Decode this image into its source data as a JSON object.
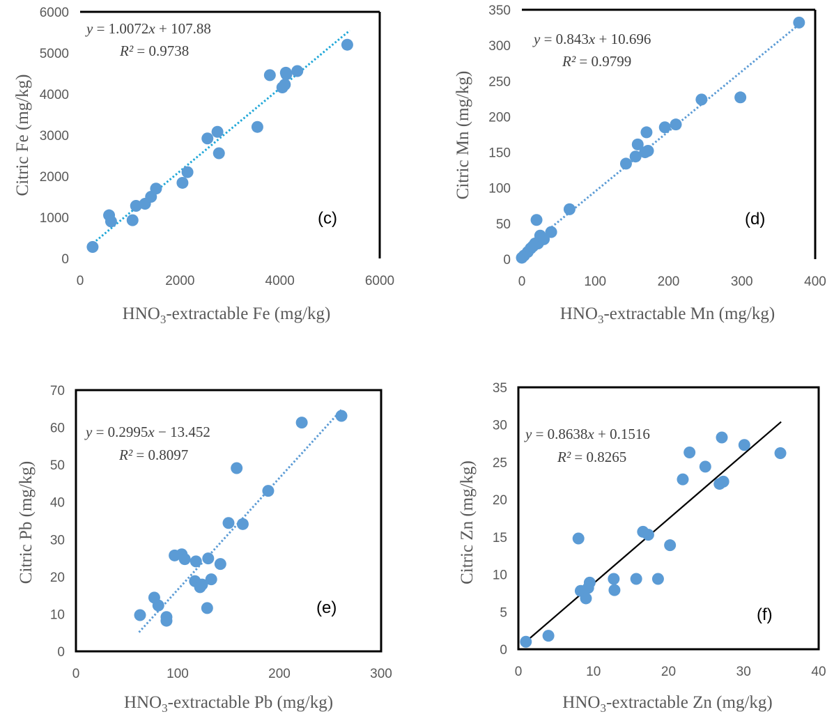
{
  "chart_data": [
    {
      "id": "c",
      "type": "scatter",
      "panel_label": "(c)",
      "xlabel": {
        "pre": "HNO",
        "sub": "3",
        "post": "-extractable Fe (mg/kg)"
      },
      "ylabel": "Citric Fe (mg/kg)",
      "xlim": [
        0,
        6000
      ],
      "ylim": [
        0,
        6000
      ],
      "xticks": [
        0,
        2000,
        4000,
        6000
      ],
      "yticks": [
        0,
        1000,
        2000,
        3000,
        4000,
        5000,
        6000
      ],
      "equation": {
        "y": "y",
        "eq": " = 1.0072",
        "x": "x",
        "rest": " + 107.88"
      },
      "r2": {
        "label": "R²",
        "value": " = 0.9738"
      },
      "trend": {
        "slope": 1.0072,
        "intercept": 107.88,
        "x_from": 200,
        "x_to": 5400,
        "style": "dotted",
        "color": "#1fa7d8"
      },
      "points": {
        "x": [
          250,
          580,
          620,
          1050,
          1120,
          1300,
          1420,
          1520,
          2050,
          2150,
          2550,
          2750,
          2780,
          3550,
          3800,
          4050,
          4100,
          4120,
          4130,
          4350,
          5350
        ],
        "y": [
          280,
          1050,
          900,
          930,
          1280,
          1330,
          1500,
          1700,
          1840,
          2100,
          2920,
          3080,
          2560,
          3200,
          4460,
          4160,
          4230,
          4520,
          4480,
          4560,
          5200
        ]
      }
    },
    {
      "id": "d",
      "type": "scatter",
      "panel_label": "(d)",
      "xlabel": {
        "pre": "HNO",
        "sub": "3",
        "post": "-extractable Mn (mg/kg)"
      },
      "ylabel": "Citric Mn (mg/kg)",
      "xlim": [
        0,
        400
      ],
      "ylim": [
        0,
        350
      ],
      "xticks": [
        0,
        100,
        200,
        300,
        400
      ],
      "yticks": [
        0,
        50,
        100,
        150,
        200,
        250,
        300,
        350
      ],
      "equation": {
        "y": "y",
        "eq": " = 0.843",
        "x": "x",
        "rest": " + 10.696"
      },
      "r2": {
        "label": "R²",
        "value": " = 0.9799"
      },
      "trend": {
        "slope": 0.843,
        "intercept": 10.696,
        "x_from": 0,
        "x_to": 378,
        "style": "dotted",
        "color": "#5b9bd5"
      },
      "points": {
        "x": [
          0,
          3,
          8,
          12,
          15,
          18,
          20,
          22,
          25,
          30,
          40,
          65,
          142,
          155,
          158,
          168,
          170,
          172,
          195,
          210,
          245,
          298,
          378
        ],
        "y": [
          2,
          5,
          10,
          15,
          18,
          22,
          55,
          22,
          33,
          28,
          38,
          70,
          134,
          144,
          161,
          150,
          178,
          152,
          185,
          189,
          224,
          227,
          332
        ]
      }
    },
    {
      "id": "e",
      "type": "scatter",
      "panel_label": "(e)",
      "xlabel": {
        "pre": "HNO",
        "sub": "3",
        "post": "-extractable Pb (mg/kg)"
      },
      "ylabel": "Citric Pb (mg/kg)",
      "xlim": [
        0,
        300
      ],
      "ylim": [
        0,
        70
      ],
      "xticks": [
        0,
        100,
        200,
        300
      ],
      "yticks": [
        0,
        10,
        20,
        30,
        40,
        50,
        60,
        70
      ],
      "equation": {
        "y": "y",
        "eq": " = 0.2995",
        "x": "x",
        "rest": " − 13.452"
      },
      "r2": {
        "label": "R²",
        "value": " = 0.8097"
      },
      "trend": {
        "slope": 0.2995,
        "intercept": -13.452,
        "x_from": 62,
        "x_to": 262,
        "style": "dotted",
        "color": "#5b9bd5"
      },
      "points": {
        "x": [
          63,
          77,
          81,
          89,
          89,
          97,
          104,
          107,
          117,
          118,
          122,
          124,
          129,
          130,
          133,
          142,
          150,
          158,
          164,
          189,
          222,
          261
        ],
        "y": [
          9.7,
          14.4,
          12.3,
          9.2,
          8.2,
          25.7,
          26.0,
          24.7,
          18.8,
          24.1,
          17.2,
          17.9,
          11.6,
          24.9,
          19.3,
          23.4,
          34.4,
          49.1,
          34.1,
          43.0,
          61.3,
          63.1
        ]
      }
    },
    {
      "id": "f",
      "type": "scatter",
      "panel_label": "(f)",
      "xlabel": {
        "pre": "HNO",
        "sub": "3",
        "post": "-extractable Zn (mg/kg)"
      },
      "ylabel": "Citric Zn (mg/kg)",
      "xlim": [
        0,
        40
      ],
      "ylim": [
        0,
        35
      ],
      "xticks": [
        0,
        10,
        20,
        30,
        40
      ],
      "yticks": [
        0,
        5,
        10,
        15,
        20,
        25,
        30,
        35
      ],
      "equation": {
        "y": "y",
        "eq": " = 0.8638",
        "x": "x",
        "rest": " + 0.1516"
      },
      "r2": {
        "label": "R²",
        "value": " = 0.8265"
      },
      "trend": {
        "slope": 0.8638,
        "intercept": 0.1516,
        "x_from": 1,
        "x_to": 35,
        "style": "solid",
        "color": "#000000"
      },
      "points": {
        "x": [
          1,
          4,
          8,
          8.3,
          9,
          9.3,
          9.5,
          12.7,
          12.8,
          15.7,
          16.6,
          17.3,
          18.6,
          20.2,
          21.9,
          22.8,
          24.9,
          26.8,
          27.1,
          27.3,
          30.1,
          34.9
        ],
        "y": [
          1,
          1.8,
          14.8,
          7.8,
          6.8,
          8.2,
          8.9,
          9.4,
          7.9,
          9.4,
          15.7,
          15.3,
          9.4,
          13.9,
          22.7,
          26.3,
          24.4,
          22.1,
          28.3,
          22.4,
          27.3,
          26.2
        ]
      }
    }
  ]
}
